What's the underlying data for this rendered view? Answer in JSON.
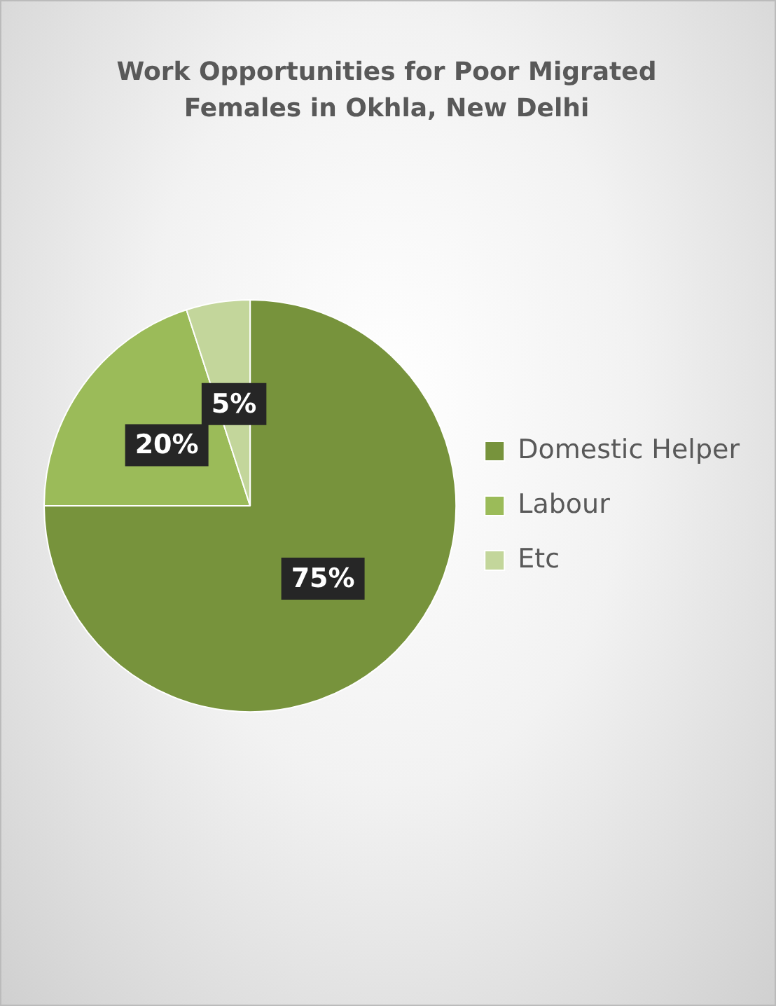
{
  "chart_data": {
    "type": "pie",
    "title": "Work Opportunities  for Poor Migrated Females in Okhla, New Delhi",
    "categories": [
      "Domestic Helper",
      "Labour",
      "Etc"
    ],
    "values": [
      75,
      20,
      5
    ],
    "colors": [
      "#77933c",
      "#9bbb59",
      "#c3d69b"
    ],
    "value_labels": [
      "75%",
      "20%",
      "5%"
    ],
    "legend": "right"
  }
}
